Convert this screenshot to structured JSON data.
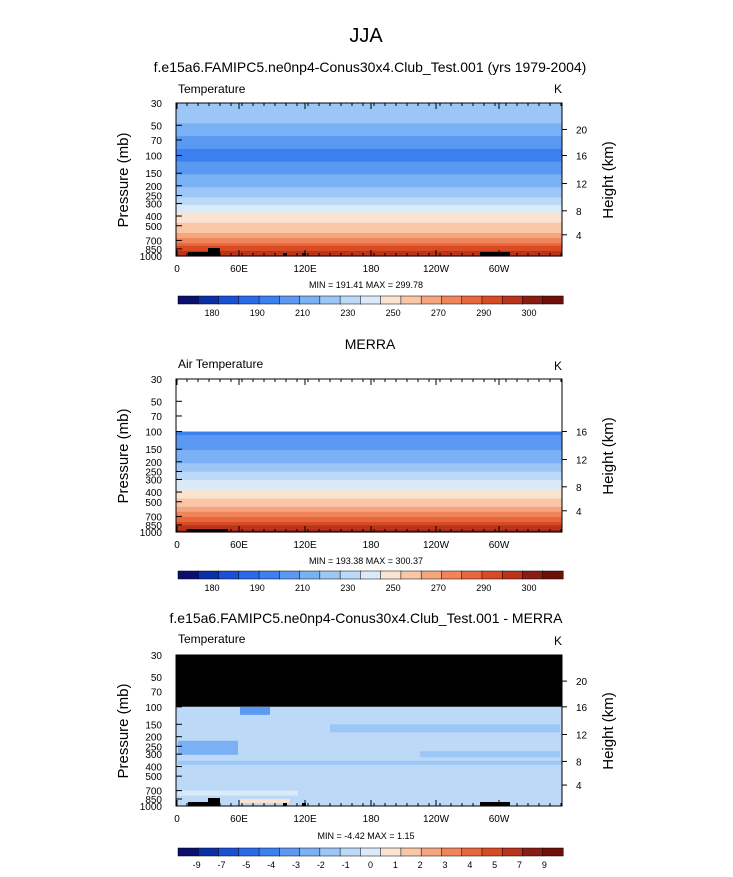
{
  "page": {
    "title": "JJA",
    "colors": {
      "missing": "#000000",
      "axes": "#000000"
    }
  },
  "chart_data": [
    {
      "type": "heatmap",
      "title": "f.e15a6.FAMIPC5.ne0np4-Conus30x4.Club_Test.001 (yrs 1979-2004)",
      "left_label": "Temperature",
      "units": "K",
      "ylabel": "Pressure (mb)",
      "ylabel_right": "Height (km)",
      "x_ticks": [
        "0",
        "60E",
        "120E",
        "180",
        "120W",
        "60W"
      ],
      "y_ticks": [
        "30",
        "50",
        "70",
        "100",
        "150",
        "200",
        "250",
        "300",
        "400",
        "500",
        "700",
        "850",
        "1000"
      ],
      "y_right_ticks": [
        "20",
        "16",
        "12",
        "8",
        "4"
      ],
      "stats": "MIN = 191.41  MAX = 299.78",
      "scale": "log-pressure",
      "colorbar": {
        "labels": [
          "180",
          "190",
          "210",
          "230",
          "250",
          "270",
          "290",
          "300"
        ],
        "colors": [
          "#0a0f6e",
          "#0a2fa6",
          "#1a4fd6",
          "#2a6aea",
          "#3a80f0",
          "#5a98f2",
          "#7ab0f4",
          "#9cc6f6",
          "#bcd9f8",
          "#dbeaf9",
          "#fbe3d2",
          "#f9c6a6",
          "#f5a57e",
          "#f0855c",
          "#e8673d",
          "#d94b22",
          "#b8341a",
          "#8b1c14",
          "#6e0f0a"
        ],
        "fill_fraction": 1.0
      },
      "profile": [
        {
          "p": 30,
          "v": 228
        },
        {
          "p": 40,
          "v": 224
        },
        {
          "p": 50,
          "v": 219
        },
        {
          "p": 60,
          "v": 213
        },
        {
          "p": 70,
          "v": 206
        },
        {
          "p": 85,
          "v": 200
        },
        {
          "p": 100,
          "v": 197
        },
        {
          "p": 130,
          "v": 204
        },
        {
          "p": 150,
          "v": 209
        },
        {
          "p": 200,
          "v": 218
        },
        {
          "p": 250,
          "v": 228
        },
        {
          "p": 300,
          "v": 238
        },
        {
          "p": 400,
          "v": 253
        },
        {
          "p": 500,
          "v": 263
        },
        {
          "p": 700,
          "v": 278
        },
        {
          "p": 850,
          "v": 288
        },
        {
          "p": 1000,
          "v": 296
        }
      ]
    },
    {
      "type": "heatmap",
      "title": "MERRA",
      "left_label": "Air Temperature",
      "units": "K",
      "ylabel": "Pressure (mb)",
      "ylabel_right": "Height (km)",
      "x_ticks": [
        "0",
        "60E",
        "120E",
        "180",
        "120W",
        "60W"
      ],
      "y_ticks": [
        "30",
        "50",
        "70",
        "100",
        "150",
        "200",
        "250",
        "300",
        "400",
        "500",
        "700",
        "850",
        "1000"
      ],
      "y_right_ticks": [
        "16",
        "12",
        "8",
        "4"
      ],
      "stats": "MIN = 193.38  MAX = 300.37",
      "data_top_p": 100,
      "colorbar": {
        "labels": [
          "180",
          "190",
          "210",
          "230",
          "250",
          "270",
          "290",
          "300"
        ],
        "colors": [
          "#0a0f6e",
          "#0a2fa6",
          "#1a4fd6",
          "#2a6aea",
          "#3a80f0",
          "#5a98f2",
          "#7ab0f4",
          "#9cc6f6",
          "#bcd9f8",
          "#dbeaf9",
          "#fbe3d2",
          "#f9c6a6",
          "#f5a57e",
          "#f0855c",
          "#e8673d",
          "#d94b22",
          "#b8341a",
          "#8b1c14",
          "#6e0f0a"
        ]
      },
      "profile": [
        {
          "p": 100,
          "v": 198
        },
        {
          "p": 130,
          "v": 205
        },
        {
          "p": 150,
          "v": 210
        },
        {
          "p": 200,
          "v": 219
        },
        {
          "p": 250,
          "v": 229
        },
        {
          "p": 300,
          "v": 239
        },
        {
          "p": 400,
          "v": 253
        },
        {
          "p": 500,
          "v": 264
        },
        {
          "p": 700,
          "v": 279
        },
        {
          "p": 850,
          "v": 289
        },
        {
          "p": 1000,
          "v": 297
        }
      ]
    },
    {
      "type": "heatmap",
      "title": "f.e15a6.FAMIPC5.ne0np4-Conus30x4.Club_Test.001 - MERRA",
      "left_label": "Temperature",
      "units": "K",
      "ylabel": "Pressure (mb)",
      "ylabel_right": "Height (km)",
      "x_ticks": [
        "0",
        "60E",
        "120E",
        "180",
        "120W",
        "60W"
      ],
      "y_ticks": [
        "30",
        "50",
        "70",
        "100",
        "150",
        "200",
        "250",
        "300",
        "400",
        "500",
        "700",
        "850",
        "1000"
      ],
      "y_right_ticks": [
        "20",
        "16",
        "12",
        "8",
        "4"
      ],
      "stats": "MIN = -4.42  MAX =  1.15",
      "missing_above_p": 100,
      "colorbar": {
        "labels": [
          "-9",
          "-7",
          "-5",
          "-4",
          "-3",
          "-2",
          "-1",
          "0",
          "1",
          "2",
          "3",
          "4",
          "5",
          "7",
          "9"
        ],
        "colors": [
          "#0a0f6e",
          "#0a2fa6",
          "#1a4fd6",
          "#2a6aea",
          "#3a80f0",
          "#5a98f2",
          "#7ab0f4",
          "#9cc6f6",
          "#bcd9f8",
          "#dbeaf9",
          "#fbe3d2",
          "#f9c6a6",
          "#f5a57e",
          "#f0855c",
          "#e8673d",
          "#d94b22",
          "#b8341a",
          "#8b1c14",
          "#6e0f0a"
        ]
      }
    }
  ]
}
